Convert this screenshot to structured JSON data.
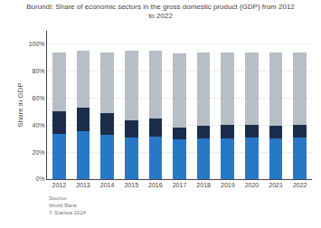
{
  "chart_data": {
    "type": "bar",
    "stacked": true,
    "title": "Burundi: Share of economic sectors in the gross domestic product (GDP) from 2012\nto 2022",
    "ylabel": "Share in GDP",
    "categories": [
      "2012",
      "2013",
      "2014",
      "2015",
      "2016",
      "2017",
      "2018",
      "2019",
      "2020",
      "2021",
      "2022"
    ],
    "series": [
      {
        "color": "#2878c8",
        "values": [
          33.5,
          35.5,
          33.0,
          31.0,
          31.5,
          29.5,
          30.0,
          30.5,
          31.0,
          30.5,
          31.0
        ]
      },
      {
        "color": "#1b2d4a",
        "values": [
          16.5,
          17.5,
          16.0,
          12.5,
          13.5,
          9.0,
          9.5,
          9.5,
          9.0,
          9.0,
          9.0
        ]
      },
      {
        "color": "#b8bec5",
        "values": [
          44.0,
          42.0,
          45.0,
          51.5,
          50.0,
          55.0,
          54.5,
          54.0,
          54.0,
          54.5,
          54.0
        ]
      }
    ],
    "ylim": [
      0,
      110
    ],
    "yticks": [
      {
        "value": 0,
        "label": "0%"
      },
      {
        "value": 20,
        "label": "20%"
      },
      {
        "value": 40,
        "label": "40%"
      },
      {
        "value": 60,
        "label": "60%"
      },
      {
        "value": 80,
        "label": "80%"
      },
      {
        "value": 100,
        "label": "100%"
      }
    ],
    "grid": true,
    "annotations": [
      "Source:\nWorld Bank\n© Statista 2024"
    ]
  }
}
